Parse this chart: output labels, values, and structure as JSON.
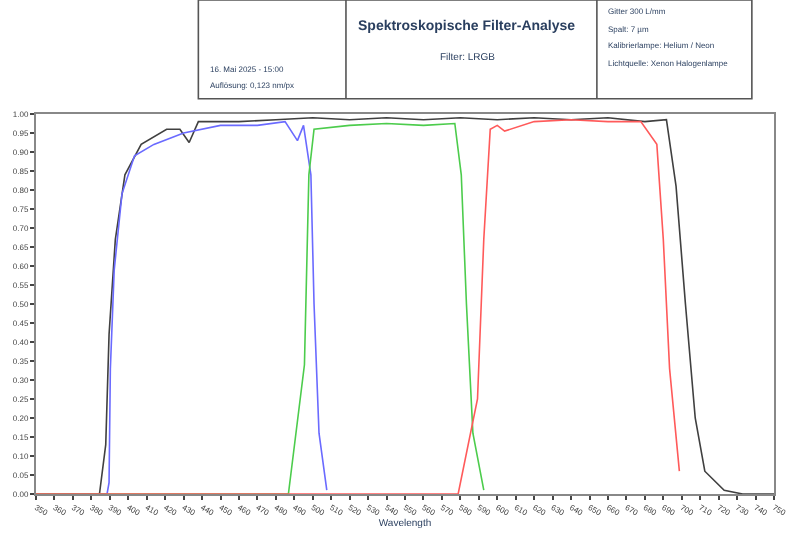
{
  "chart_data": {
    "type": "line",
    "title": "Spektroskopische Filter-Analyse",
    "subtitle": "Filter: LRGB",
    "xlabel": "Wavelength",
    "annotations": [
      "16. Mai 2025 - 15:00",
      "Auflösung: 0,123 nm/px",
      "Gitter 300 L/mm",
      "Spalt: 7 µm",
      "Kalibrierlampe: Helium / Neon",
      "Lichtquelle: Xenon Halogenlampe"
    ],
    "series": [
      {
        "color": "#404040",
        "x": [
          350,
          384.4,
          387.8,
          389.6,
          393,
          398.2,
          407,
          420.8,
          428,
          433,
          438,
          460,
          480,
          500,
          520,
          540,
          560,
          580,
          600,
          620,
          640,
          660,
          680,
          691.7,
          696.9,
          702,
          707.3,
          712.5,
          723,
          733,
          750
        ],
        "values": [
          0,
          0,
          0.13,
          0.42,
          0.67,
          0.84,
          0.92,
          0.96,
          0.96,
          0.925,
          0.98,
          0.98,
          0.985,
          0.99,
          0.985,
          0.99,
          0.985,
          0.99,
          0.985,
          0.99,
          0.985,
          0.99,
          0.98,
          0.985,
          0.81,
          0.5,
          0.2,
          0.06,
          0.01,
          0,
          0
        ]
      },
      {
        "color": "#6a6aff",
        "x": [
          350,
          388.5,
          389.6,
          390.3,
          392.4,
          396.6,
          403.4,
          413.9,
          430,
          450,
          470,
          485,
          491.7,
          495,
          499,
          500.7,
          503.4,
          507.6
        ],
        "values": [
          0,
          0,
          0.03,
          0.33,
          0.59,
          0.79,
          0.89,
          0.92,
          0.95,
          0.97,
          0.97,
          0.98,
          0.93,
          0.97,
          0.84,
          0.5,
          0.16,
          0.01
        ]
      },
      {
        "color": "#4ccc4c",
        "x": [
          350,
          486.8,
          495.5,
          497.9,
          500.7,
          520,
          540,
          560,
          577,
          580.5,
          583.3,
          586.8,
          592.7
        ],
        "values": [
          0,
          0,
          0.34,
          0.84,
          0.96,
          0.97,
          0.975,
          0.97,
          0.975,
          0.84,
          0.5,
          0.16,
          0.01
        ]
      },
      {
        "color": "#ff5a5a",
        "x": [
          350,
          578.8,
          589.3,
          592.7,
          596.2,
          600,
          604,
          620,
          640,
          660,
          677.8,
          686.5,
          690,
          693.4,
          698.7
        ],
        "values": [
          0,
          0,
          0.25,
          0.67,
          0.96,
          0.97,
          0.955,
          0.98,
          0.985,
          0.98,
          0.98,
          0.92,
          0.67,
          0.33,
          0.06
        ]
      }
    ],
    "xlim": [
      350,
      750
    ],
    "xticks": [
      350,
      360,
      370,
      380,
      390,
      400,
      410,
      420,
      430,
      440,
      450,
      460,
      470,
      480,
      490,
      500,
      510,
      520,
      530,
      540,
      550,
      560,
      570,
      580,
      590,
      600,
      610,
      620,
      630,
      640,
      650,
      660,
      670,
      680,
      690,
      700,
      710,
      720,
      730,
      740,
      750
    ],
    "ylim": [
      0,
      1
    ],
    "yticks": [
      {
        "value": 0,
        "label": "0.00"
      },
      {
        "value": 0.05,
        "label": "0.05"
      },
      {
        "value": 0.1,
        "label": "0.10"
      },
      {
        "value": 0.15,
        "label": "0.15"
      },
      {
        "value": 0.2,
        "label": "0.20"
      },
      {
        "value": 0.25,
        "label": "0.25"
      },
      {
        "value": 0.3,
        "label": "0.30"
      },
      {
        "value": 0.35,
        "label": "0.35"
      },
      {
        "value": 0.4,
        "label": "0.40"
      },
      {
        "value": 0.45,
        "label": "0.45"
      },
      {
        "value": 0.5,
        "label": "0.50"
      },
      {
        "value": 0.55,
        "label": "0.55"
      },
      {
        "value": 0.6,
        "label": "0.60"
      },
      {
        "value": 0.65,
        "label": "0.65"
      },
      {
        "value": 0.7,
        "label": "0.70"
      },
      {
        "value": 0.75,
        "label": "0.75"
      },
      {
        "value": 0.8,
        "label": "0.80"
      },
      {
        "value": 0.85,
        "label": "0.85"
      },
      {
        "value": 0.9,
        "label": "0.90"
      },
      {
        "value": 0.95,
        "label": "0.95"
      },
      {
        "value": 1,
        "label": "1.00"
      }
    ],
    "marker": "none",
    "line_style": "solid"
  }
}
